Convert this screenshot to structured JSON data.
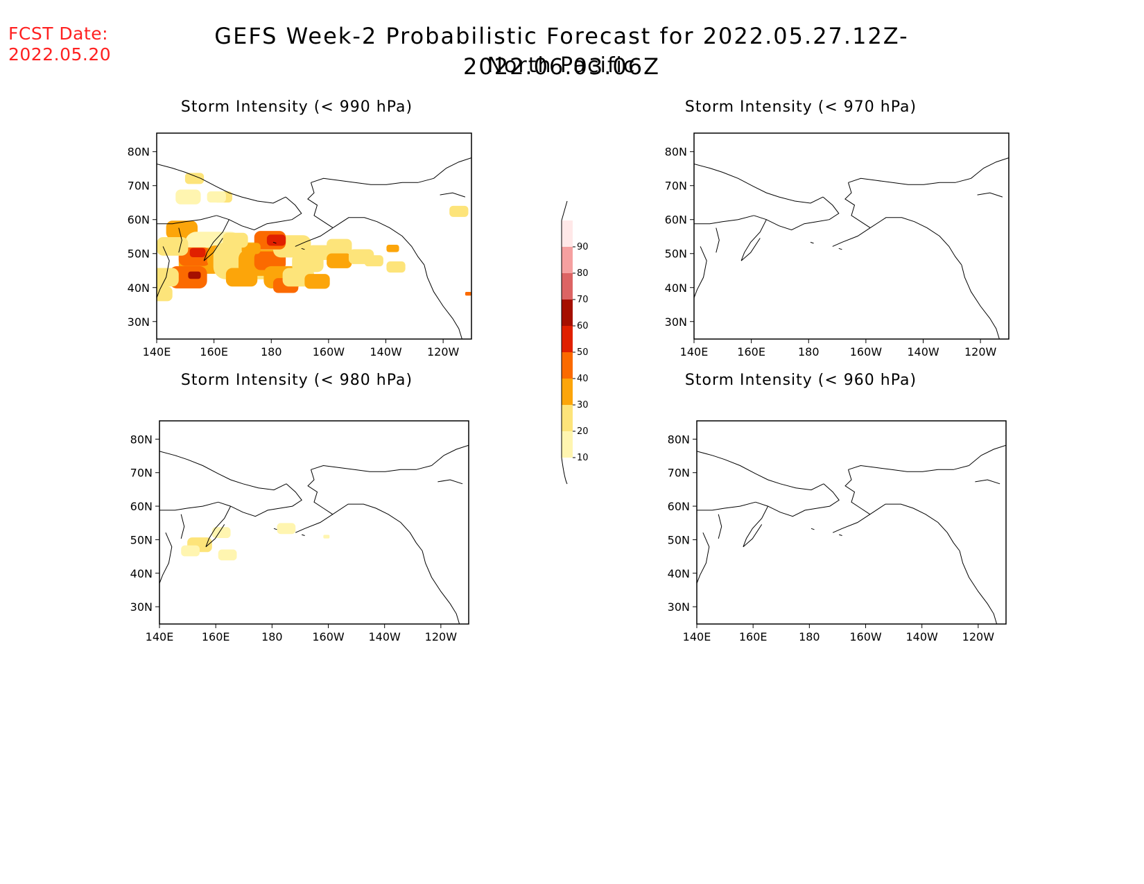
{
  "header": {
    "fcst_label": "FCST Date:",
    "fcst_date": "2022.05.20",
    "title": "GEFS Week-2 Probabilistic Forecast for 2022.05.27.12Z-2022.06.03.06Z",
    "subtitle": "North Pacific"
  },
  "panels": [
    {
      "id": "p990",
      "title": "Storm Intensity (< 990 hPa)"
    },
    {
      "id": "p970",
      "title": "Storm Intensity (< 970 hPa)"
    },
    {
      "id": "p980",
      "title": "Storm Intensity (< 980 hPa)"
    },
    {
      "id": "p960",
      "title": "Storm Intensity (< 960 hPa)"
    }
  ],
  "axes": {
    "lon_ticks": [
      "140E",
      "160E",
      "180",
      "160W",
      "140W",
      "120W"
    ],
    "lat_ticks": [
      "80N",
      "70N",
      "60N",
      "50N",
      "40N",
      "30N"
    ]
  },
  "colorbar": {
    "labels": [
      "10",
      "20",
      "30",
      "40",
      "50",
      "60",
      "70",
      "80",
      "90"
    ],
    "colors": [
      "#fff5b0",
      "#fde47a",
      "#fca50a",
      "#fb6a00",
      "#e02000",
      "#a50f00",
      "#dc6464",
      "#f5a0a0",
      "#ffe8e8"
    ]
  },
  "colors": {
    "fcst_text": "#ff2020"
  }
}
